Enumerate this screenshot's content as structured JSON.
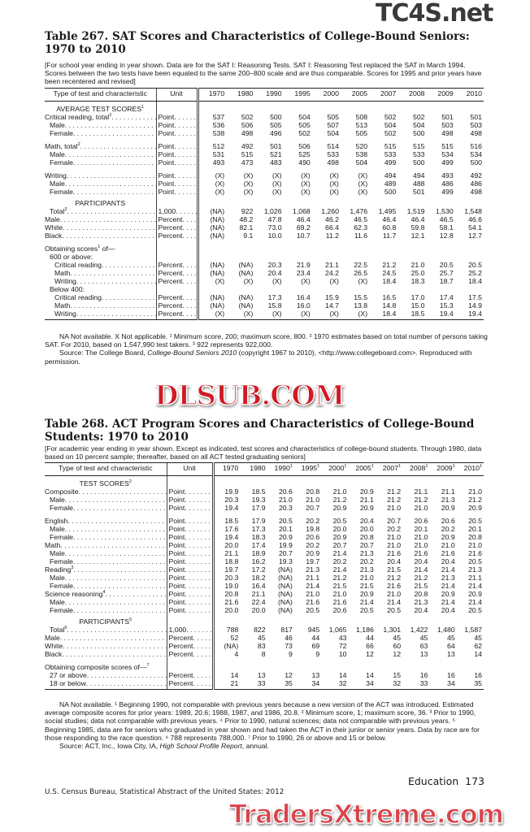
{
  "watermarks": {
    "top": "TC4S.net",
    "middle": "DLSUB.COM",
    "bottom": "TradersXtreme.com"
  },
  "table267": {
    "title": "Table 267. SAT Scores and Characteristics of College-Bound Seniors: 1970 to 2010",
    "headnote": "[For school year ending in year shown. Data are for the SAT I: Reasoning Tests. SAT I: Reasoning Test replaced the SAT in March 1994. Scores between the two tests have been equated to the same 200–800 scale and are thus comparable. Scores for 1995 and prior years have been recentered and revised]",
    "col_label": "Type of test and characteristic",
    "col_unit": "Unit",
    "years": [
      {
        "y": "1970"
      },
      {
        "y": "1980"
      },
      {
        "y": "1990"
      },
      {
        "y": "1995"
      },
      {
        "y": "2000"
      },
      {
        "y": "2005"
      },
      {
        "y": "2007"
      },
      {
        "y": "2008"
      },
      {
        "y": "2009"
      },
      {
        "y": "2010"
      }
    ],
    "rows": [
      {
        "type": "section",
        "label": "AVERAGE TEST SCORES",
        "note": "1"
      },
      {
        "label": "Critical reading, total",
        "note": "2",
        "unit": "Point",
        "level": 0,
        "values": [
          "537",
          "502",
          "500",
          "504",
          "505",
          "508",
          "502",
          "502",
          "501",
          "501"
        ]
      },
      {
        "label": "Male",
        "unit": "Point",
        "level": 1,
        "values": [
          "536",
          "506",
          "505",
          "505",
          "507",
          "513",
          "504",
          "504",
          "503",
          "503"
        ]
      },
      {
        "label": "Female",
        "unit": "Point",
        "level": 1,
        "values": [
          "538",
          "498",
          "496",
          "502",
          "504",
          "505",
          "502",
          "500",
          "498",
          "498"
        ]
      },
      {
        "gap": true,
        "label": "Math, total",
        "note": "2",
        "unit": "Point",
        "level": 0,
        "values": [
          "512",
          "492",
          "501",
          "506",
          "514",
          "520",
          "515",
          "515",
          "515",
          "516"
        ]
      },
      {
        "label": "Male",
        "unit": "Point",
        "level": 1,
        "values": [
          "531",
          "515",
          "521",
          "525",
          "533",
          "538",
          "533",
          "533",
          "534",
          "534"
        ]
      },
      {
        "label": "Female",
        "unit": "Point",
        "level": 1,
        "values": [
          "493",
          "473",
          "483",
          "490",
          "498",
          "504",
          "499",
          "500",
          "499",
          "500"
        ]
      },
      {
        "gap": true,
        "label": "Writing",
        "unit": "Point",
        "level": 0,
        "values": [
          "(X)",
          "(X)",
          "(X)",
          "(X)",
          "(X)",
          "(X)",
          "494",
          "494",
          "493",
          "492"
        ]
      },
      {
        "label": "Male",
        "unit": "Point",
        "level": 1,
        "values": [
          "(X)",
          "(X)",
          "(X)",
          "(X)",
          "(X)",
          "(X)",
          "489",
          "488",
          "486",
          "486"
        ]
      },
      {
        "label": "Female",
        "unit": "Point",
        "level": 1,
        "values": [
          "(X)",
          "(X)",
          "(X)",
          "(X)",
          "(X)",
          "(X)",
          "500",
          "501",
          "499",
          "498"
        ]
      },
      {
        "type": "section",
        "label": "PARTICIPANTS"
      },
      {
        "label": "Total",
        "note": "3",
        "unit": "1,000",
        "level": 1,
        "values": [
          "(NA)",
          "922",
          "1,026",
          "1,068",
          "1,260",
          "1,476",
          "1,495",
          "1,519",
          "1,530",
          "1,548"
        ]
      },
      {
        "label": "Male",
        "unit": "Percent",
        "level": 0,
        "values": [
          "(NA)",
          "48.2",
          "47.8",
          "46.4",
          "46.2",
          "46.5",
          "46.4",
          "46.4",
          "46.5",
          "46.6"
        ]
      },
      {
        "label": "White",
        "unit": "Percent",
        "level": 0,
        "values": [
          "(NA)",
          "82.1",
          "73.0",
          "69.2",
          "66.4",
          "62.3",
          "60.8",
          "59.8",
          "58.1",
          "54.1"
        ]
      },
      {
        "label": "Black",
        "unit": "Percent",
        "level": 0,
        "values": [
          "(NA)",
          "9.1",
          "10.0",
          "10.7",
          "11.2",
          "11.6",
          "11.7",
          "12.1",
          "12.8",
          "12.7"
        ]
      },
      {
        "gap": true,
        "type": "sub",
        "label": "Obtaining scores",
        "note": "1",
        "suffix": " of—",
        "level": 0
      },
      {
        "type": "sub",
        "label": "600 or above:",
        "level": 1
      },
      {
        "label": "Critical reading",
        "unit": "Percent",
        "level": 2,
        "values": [
          "(NA)",
          "(NA)",
          "20.3",
          "21.9",
          "21.1",
          "22.5",
          "21.2",
          "21.0",
          "20.5",
          "20.5"
        ]
      },
      {
        "label": "Math",
        "unit": "Percent",
        "level": 2,
        "values": [
          "(NA)",
          "(NA)",
          "20.4",
          "23.4",
          "24.2",
          "26.5",
          "24.5",
          "25.0",
          "25.7",
          "25.2"
        ]
      },
      {
        "label": "Writing",
        "unit": "Percent",
        "level": 2,
        "values": [
          "(X)",
          "(X)",
          "(X)",
          "(X)",
          "(X)",
          "(X)",
          "18.4",
          "18.3",
          "18.7",
          "18.4"
        ]
      },
      {
        "type": "sub",
        "label": "Below 400:",
        "level": 1
      },
      {
        "label": "Critical reading",
        "unit": "Percent",
        "level": 2,
        "values": [
          "(NA)",
          "(NA)",
          "17.3",
          "16.4",
          "15.9",
          "15.5",
          "16.5",
          "17.0",
          "17.4",
          "17.5"
        ]
      },
      {
        "label": "Math",
        "unit": "Percent",
        "level": 2,
        "values": [
          "(NA)",
          "(NA)",
          "15.8",
          "16.0",
          "14.7",
          "13.8",
          "14.8",
          "15.0",
          "15.3",
          "14.9"
        ]
      },
      {
        "label": "Writing",
        "unit": "Percent",
        "level": 2,
        "values": [
          "(X)",
          "(X)",
          "(X)",
          "(X)",
          "(X)",
          "(X)",
          "18.4",
          "18.5",
          "19.4",
          "19.4"
        ]
      }
    ],
    "footnotes": "NA Not available. X Not applicable. ¹ Minimum score, 200; maximum score, 800. ² 1970 estimates based on total number of persons taking SAT. For 2010, based on 1,547,990 test takers. ³ 922 represents 922,000.",
    "source_prefix": "Source: The College Board, ",
    "source_title": "College-Bound Seniors 2010",
    "source_suffix": " (copyright 1967 to 2010), <http://www.collegeboard.com>. Reproduced with permission."
  },
  "table268": {
    "title": "Table 268. ACT Program Scores and Characteristics of College-Bound Students: 1970 to 2010",
    "headnote": "[For academic year ending in year shown. Except as indicated, test scores and characteristics of college-bound students. Through 1980, data based on 10 percent sample; thereafter, based on all ACT tested graduating seniors]",
    "col_label": "Type of test and characteristic",
    "col_unit": "Unit",
    "years": [
      {
        "y": "1970"
      },
      {
        "y": "1980"
      },
      {
        "y": "1990",
        "note": "1"
      },
      {
        "y": "1995",
        "note": "1"
      },
      {
        "y": "2000",
        "note": "1"
      },
      {
        "y": "2005",
        "note": "1"
      },
      {
        "y": "2007",
        "note": "1"
      },
      {
        "y": "2008",
        "note": "1"
      },
      {
        "y": "2009",
        "note": "1"
      },
      {
        "y": "2010",
        "note": "1"
      }
    ],
    "rows": [
      {
        "type": "section",
        "label": "TEST SCORES",
        "note": "2"
      },
      {
        "label": "Composite",
        "unit": "Point",
        "level": 0,
        "values": [
          "19.9",
          "18.5",
          "20.6",
          "20.8",
          "21.0",
          "20.9",
          "21.2",
          "21.1",
          "21.1",
          "21.0"
        ]
      },
      {
        "label": "Male",
        "unit": "Point",
        "level": 1,
        "values": [
          "20.3",
          "19.3",
          "21.0",
          "21.0",
          "21.2",
          "21.1",
          "21.2",
          "21.2",
          "21.3",
          "21.2"
        ]
      },
      {
        "label": "Female",
        "unit": "Point",
        "level": 1,
        "values": [
          "19.4",
          "17.9",
          "20.3",
          "20.7",
          "20.9",
          "20.9",
          "21.0",
          "21.0",
          "20.9",
          "20.9"
        ]
      },
      {
        "gap": true,
        "label": "English",
        "unit": "Point",
        "level": 0,
        "values": [
          "18.5",
          "17.9",
          "20.5",
          "20.2",
          "20.5",
          "20.4",
          "20.7",
          "20.6",
          "20.6",
          "20.5"
        ]
      },
      {
        "label": "Male",
        "unit": "Point",
        "level": 1,
        "values": [
          "17.6",
          "17.3",
          "20.1",
          "19.8",
          "20.0",
          "20.0",
          "20.2",
          "20.1",
          "20.2",
          "20.1"
        ]
      },
      {
        "label": "Female",
        "unit": "Point",
        "level": 1,
        "values": [
          "19.4",
          "18.3",
          "20.9",
          "20.6",
          "20.9",
          "20.8",
          "21.0",
          "21.0",
          "20.9",
          "20.8"
        ]
      },
      {
        "label": "Math",
        "unit": "Point",
        "level": 0,
        "values": [
          "20.0",
          "17.4",
          "19.9",
          "20.2",
          "20.7",
          "20.7",
          "21.0",
          "21.0",
          "21.0",
          "21.0"
        ]
      },
      {
        "label": "Male",
        "unit": "Point",
        "level": 1,
        "values": [
          "21.1",
          "18.9",
          "20.7",
          "20.9",
          "21.4",
          "21.3",
          "21.6",
          "21.6",
          "21.6",
          "21.6"
        ]
      },
      {
        "label": "Female",
        "unit": "Point",
        "level": 1,
        "values": [
          "18.8",
          "16.2",
          "19.3",
          "19.7",
          "20.2",
          "20.2",
          "20.4",
          "20.4",
          "20.4",
          "20.5"
        ]
      },
      {
        "label": "Reading",
        "note": "3",
        "unit": "Point",
        "level": 0,
        "values": [
          "19.7",
          "17.2",
          "(NA)",
          "21.3",
          "21.4",
          "21.3",
          "21.5",
          "21.4",
          "21.4",
          "21.3"
        ]
      },
      {
        "label": "Male",
        "unit": "Point",
        "level": 1,
        "values": [
          "20.3",
          "18.2",
          "(NA)",
          "21.1",
          "21.2",
          "21.0",
          "21.2",
          "21.2",
          "21.3",
          "21.1"
        ]
      },
      {
        "label": "Female",
        "unit": "Point",
        "level": 1,
        "values": [
          "19.0",
          "16.4",
          "(NA)",
          "21.4",
          "21.5",
          "21.5",
          "21.6",
          "21.5",
          "21.4",
          "21.4"
        ]
      },
      {
        "label": "Science reasoning",
        "note": "4",
        "unit": "Point",
        "level": 0,
        "values": [
          "20.8",
          "21.1",
          "(NA)",
          "21.0",
          "21.0",
          "20.9",
          "21.0",
          "20.8",
          "20.9",
          "20.9"
        ]
      },
      {
        "label": "Male",
        "unit": "Point",
        "level": 1,
        "values": [
          "21.6",
          "22.4",
          "(NA)",
          "21.6",
          "21.6",
          "21.4",
          "21.4",
          "21.3",
          "21.4",
          "21.4"
        ]
      },
      {
        "label": "Female",
        "unit": "Point",
        "level": 1,
        "values": [
          "20.0",
          "20.0",
          "(NA)",
          "20.5",
          "20.6",
          "20.5",
          "20.5",
          "20.4",
          "20.4",
          "20.5"
        ]
      },
      {
        "type": "section",
        "label": "PARTICIPANTS",
        "note": "5"
      },
      {
        "label": "Total",
        "note": "6",
        "unit": "1,000",
        "level": 1,
        "values": [
          "788",
          "822",
          "817",
          "945",
          "1,065",
          "1,186",
          "1,301",
          "1,422",
          "1,480",
          "1,587"
        ]
      },
      {
        "label": "Male",
        "unit": "Percent",
        "level": 0,
        "values": [
          "52",
          "45",
          "46",
          "44",
          "43",
          "44",
          "45",
          "45",
          "45",
          "45"
        ]
      },
      {
        "label": "White",
        "unit": "Percent",
        "level": 0,
        "values": [
          "(NA)",
          "83",
          "73",
          "69",
          "72",
          "66",
          "60",
          "63",
          "64",
          "62"
        ]
      },
      {
        "label": "Black",
        "unit": "Percent",
        "level": 0,
        "values": [
          "4",
          "8",
          "9",
          "9",
          "10",
          "12",
          "12",
          "13",
          "13",
          "14"
        ]
      },
      {
        "gap": true,
        "type": "sub",
        "label": "Obtaining composite scores of—",
        "note": "7",
        "level": 0
      },
      {
        "label": "27 or above",
        "unit": "Percent",
        "level": 1,
        "values": [
          "14",
          "13",
          "12",
          "13",
          "14",
          "14",
          "15",
          "16",
          "16",
          "16"
        ]
      },
      {
        "label": "18 or below",
        "unit": "Percent",
        "level": 1,
        "values": [
          "21",
          "33",
          "35",
          "34",
          "32",
          "34",
          "32",
          "33",
          "34",
          "35"
        ]
      }
    ],
    "footnotes": "NA Not available. ¹ Beginning 1990, not comparable with previous years because a new version of the ACT was introduced. Estimated average composite scores for prior years: 1989, 20.6; 1988, 1987, and 1986, 20.8. ² Minimum score, 1; maximum score, 36. ³ Prior to 1990, social studies; data not comparable with previous years. ⁴ Prior to 1990, natural sciences; data not comparable with previous years. ⁵ Beginning 1985, data are for seniors who graduated in year shown and had taken the ACT in their junior or senior years. Data by race are for those responding to the race question. ⁶ 788 represents 788,000. ⁷ Prior to 1990, 26 or above and 15 or below.",
    "source_prefix": "Source: ACT, Inc., Iowa City, IA, ",
    "source_title": "High School Profile Report",
    "source_suffix": ", annual."
  },
  "page_footer": {
    "section": "Education",
    "page_number": "173",
    "publisher": "U.S. Census Bureau, Statistical Abstract of the United States: 2012"
  }
}
